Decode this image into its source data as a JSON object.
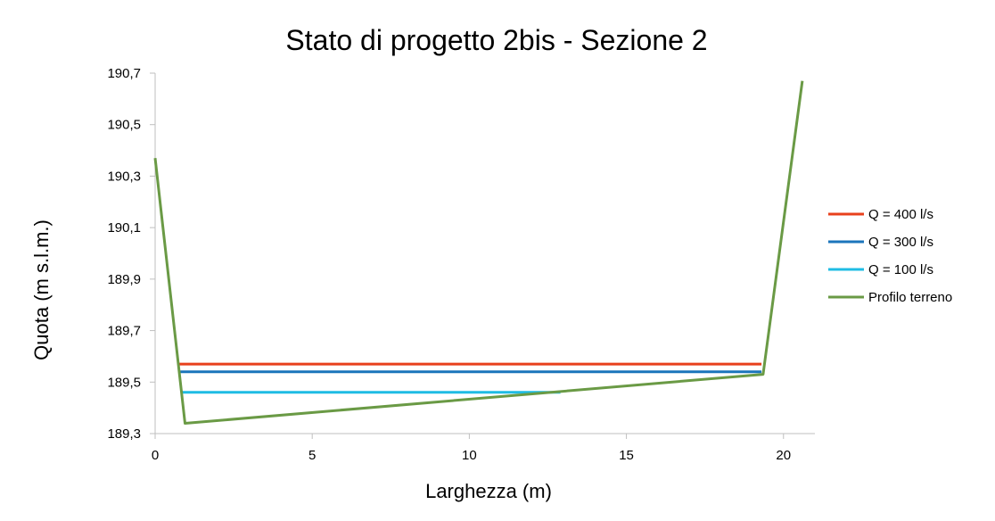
{
  "chart_data": {
    "type": "line",
    "title": "Stato di progetto 2bis - Sezione 2",
    "xlabel": "Larghezza (m)",
    "ylabel": "Quota (m s.l.m.)",
    "xlim": [
      0,
      21
    ],
    "ylim": [
      189.3,
      190.7
    ],
    "x_ticks": [
      "0",
      "5",
      "10",
      "15",
      "20"
    ],
    "y_ticks": [
      "189,3",
      "189,5",
      "189,7",
      "189,9",
      "190,1",
      "190,3",
      "190,5",
      "190,7"
    ],
    "grid": false,
    "legend_position": "right",
    "series": [
      {
        "name": "Q = 400 l/s",
        "color": "#E8401C",
        "points": [
          [
            0.75,
            189.57
          ],
          [
            19.3,
            189.57
          ]
        ]
      },
      {
        "name": "Q = 300 l/s",
        "color": "#1B75BB",
        "points": [
          [
            0.8,
            189.54
          ],
          [
            19.3,
            189.54
          ]
        ]
      },
      {
        "name": "Q = 100 l/s",
        "color": "#1FBCE4",
        "points": [
          [
            0.85,
            189.46
          ],
          [
            12.9,
            189.46
          ]
        ]
      },
      {
        "name": "Profilo terreno",
        "color": "#6A9A45",
        "points": [
          [
            0,
            190.37
          ],
          [
            0.95,
            189.34
          ],
          [
            19.35,
            189.53
          ],
          [
            20.6,
            190.67
          ]
        ]
      }
    ]
  }
}
